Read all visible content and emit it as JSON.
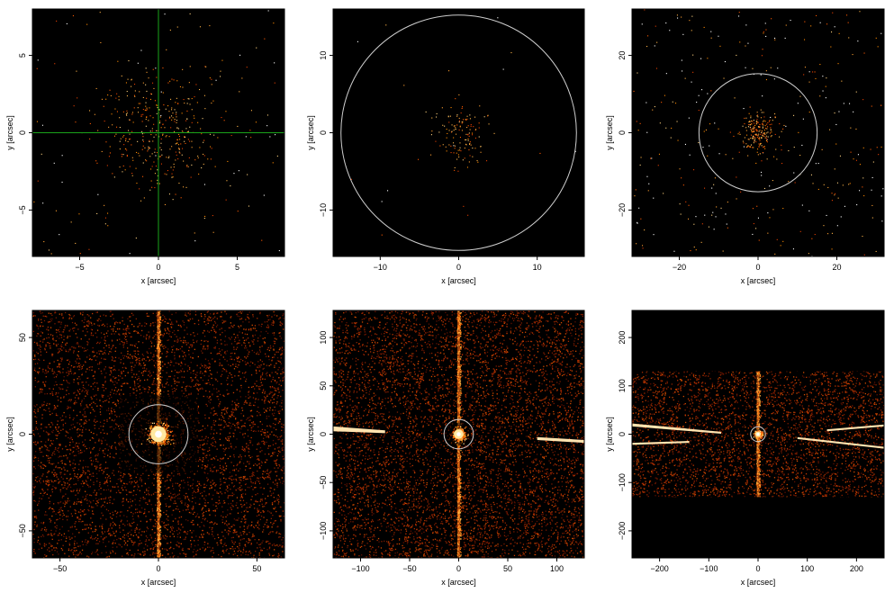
{
  "chart_data": [
    {
      "type": "heatmap",
      "panel": "top-left",
      "xlabel": "x [arcsec]",
      "ylabel": "y [arcsec]",
      "xlim": [
        -8,
        8
      ],
      "ylim": [
        -8,
        8
      ],
      "xticks": [
        -5,
        0,
        5
      ],
      "yticks": [
        -5,
        0,
        5
      ],
      "background": "#000000",
      "overlay": {
        "crosshair": true,
        "crosshair_color": "#1aa31a"
      },
      "source": {
        "x": 0,
        "y": 0,
        "sigma": 2.0,
        "count": 380
      },
      "background_count": 110
    },
    {
      "type": "heatmap",
      "panel": "top-middle",
      "xlabel": "x [arcsec]",
      "ylabel": "y [arcsec]",
      "xlim": [
        -16,
        16
      ],
      "ylim": [
        -16,
        16
      ],
      "xticks": [
        -10,
        0,
        10
      ],
      "yticks": [
        -10,
        0,
        10
      ],
      "background": "#000000",
      "overlay": {
        "circle_radius": 15,
        "circle_color": "#cfcfcf"
      },
      "source": {
        "x": 0,
        "y": 0,
        "sigma": 1.8,
        "count": 130
      },
      "background_count": 20
    },
    {
      "type": "heatmap",
      "panel": "top-right",
      "xlabel": "x [arcsec]",
      "ylabel": "y [arcsec]",
      "xlim": [
        -32,
        32
      ],
      "ylim": [
        -32,
        32
      ],
      "xticks": [
        -20,
        0,
        20
      ],
      "yticks": [
        -20,
        0,
        20
      ],
      "background": "#000000",
      "overlay": {
        "circle_radius": 15,
        "circle_color": "#cfcfcf"
      },
      "source": {
        "x": 0,
        "y": 0,
        "sigma": 2.5,
        "count": 200
      },
      "background_count": 330
    },
    {
      "type": "heatmap",
      "panel": "bottom-left",
      "xlabel": "x [arcsec]",
      "ylabel": "y [arcsec]",
      "xlim": [
        -64,
        64
      ],
      "ylim": [
        -64,
        64
      ],
      "xticks": [
        -50,
        0,
        50
      ],
      "yticks": [
        -50,
        0,
        50
      ],
      "background": "#000000",
      "overlay": {
        "circle_radius": 15,
        "circle_color": "#cfcfcf"
      },
      "source": {
        "x": 0,
        "y": 0,
        "sigma": 2.5,
        "count": 600
      },
      "background_count": 5200
    },
    {
      "type": "heatmap",
      "panel": "bottom-middle",
      "xlabel": "x [arcsec]",
      "ylabel": "y [arcsec]",
      "xlim": [
        -128,
        128
      ],
      "ylim": [
        -128,
        128
      ],
      "xticks": [
        -100,
        -50,
        0,
        50,
        100
      ],
      "yticks": [
        -100,
        -50,
        0,
        50,
        100
      ],
      "background": "#000000",
      "overlay": {
        "circle_radius": 15,
        "circle_color": "#cfcfcf"
      },
      "source": {
        "x": 0,
        "y": 0,
        "sigma": 3.0,
        "count": 500
      },
      "background_count": 6500
    },
    {
      "type": "heatmap",
      "panel": "bottom-right",
      "xlabel": "x [arcsec]",
      "ylabel": "y [arcsec]",
      "xlim": [
        -256,
        256
      ],
      "ylim": [
        -256,
        256
      ],
      "xticks": [
        -200,
        -100,
        0,
        100,
        200
      ],
      "yticks": [
        -200,
        -100,
        0,
        100,
        200
      ],
      "background": "#000000",
      "overlay": {
        "circle_radius": 15,
        "circle_color": "#cfcfcf"
      },
      "source": {
        "x": 0,
        "y": 0,
        "sigma": 3.5,
        "count": 450
      },
      "background_count": 7000
    }
  ]
}
